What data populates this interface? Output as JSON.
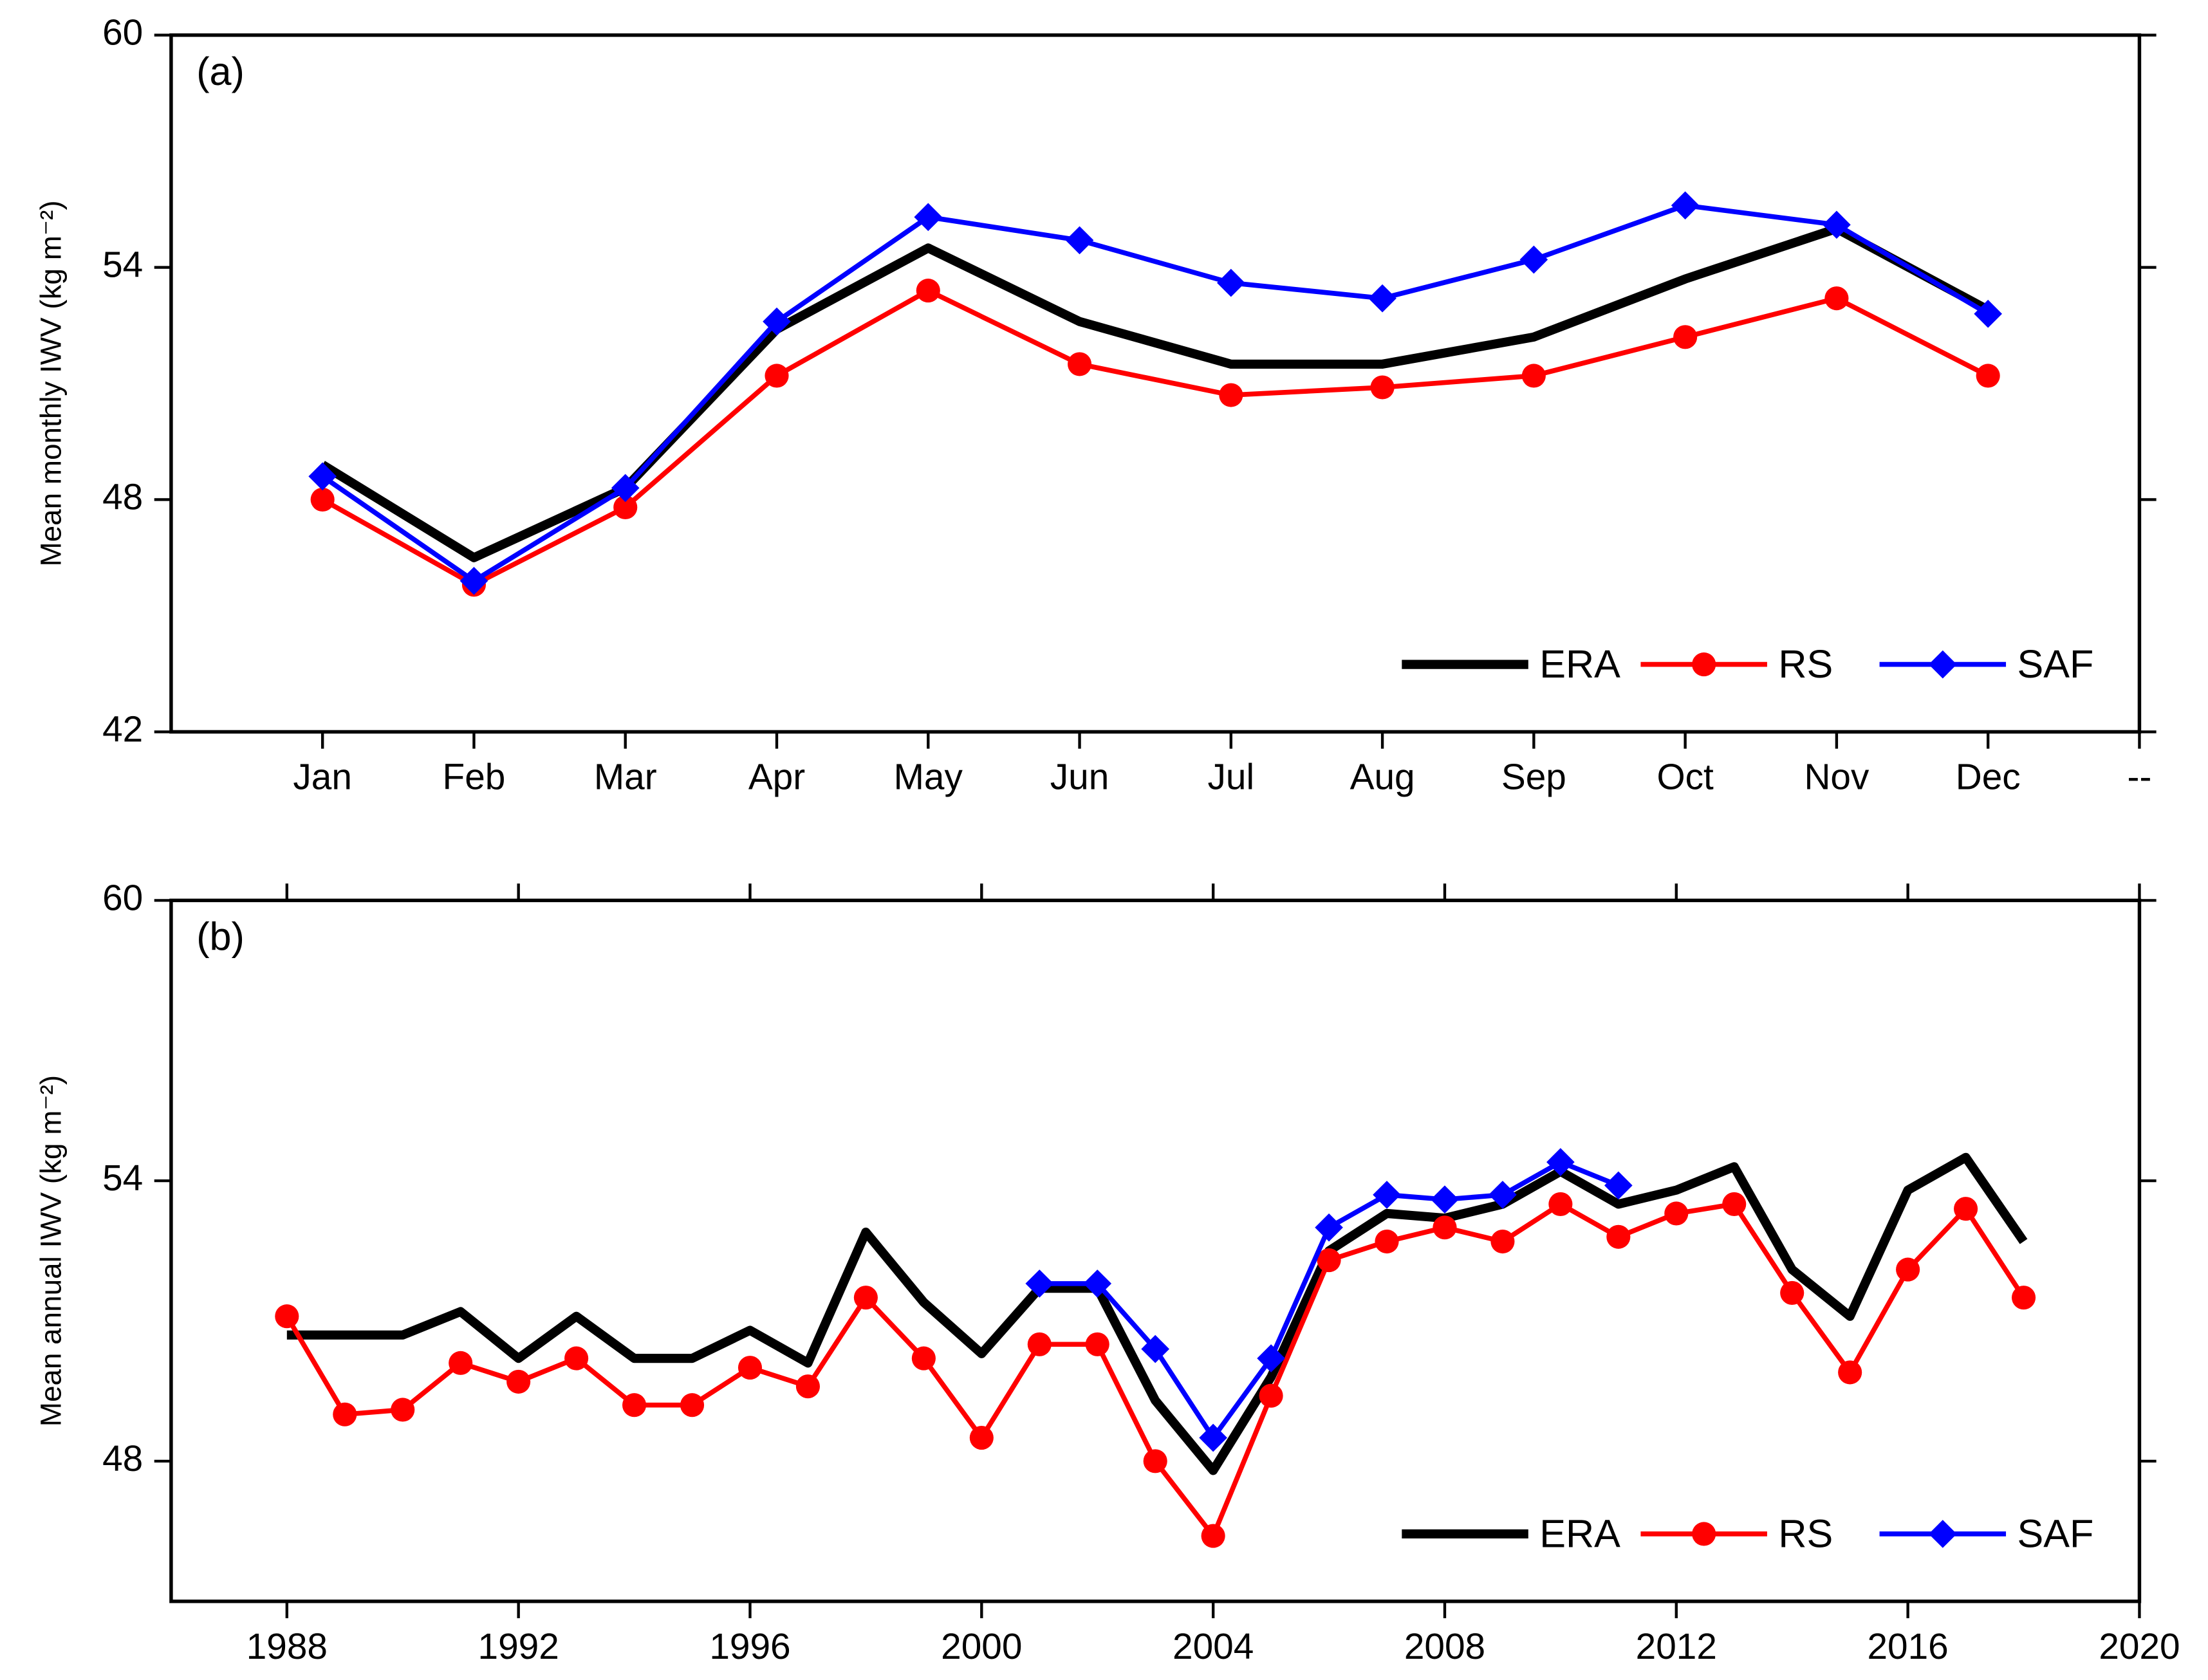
{
  "chart_data": [
    {
      "type": "line",
      "title": "(a)",
      "y_label": "Mean monthly IWV (kg m⁻²)",
      "categories": [
        "Jan",
        "Feb",
        "Mar",
        "Apr",
        "May",
        "Jun",
        "Jul",
        "Aug",
        "Sep",
        "Oct",
        "Nov",
        "Dec",
        "--"
      ],
      "series": [
        {
          "name": "ERA",
          "color": "#000000",
          "marker": null,
          "values": [
            48.9,
            46.5,
            48.3,
            52.4,
            54.5,
            52.6,
            51.5,
            51.5,
            52.2,
            53.7,
            55.0,
            52.9,
            null
          ]
        },
        {
          "name": "RS",
          "color": "#ff0000",
          "marker": "circle",
          "values": [
            48.0,
            45.8,
            47.8,
            51.2,
            53.4,
            51.5,
            50.7,
            50.9,
            51.2,
            52.2,
            53.2,
            51.2,
            null
          ]
        },
        {
          "name": "SAF",
          "color": "#0000ff",
          "marker": "diamond",
          "values": [
            48.6,
            45.9,
            48.3,
            52.6,
            55.3,
            54.7,
            53.6,
            53.2,
            54.2,
            55.6,
            55.1,
            52.8,
            null
          ]
        }
      ],
      "ylim": [
        42,
        60
      ],
      "yticks": [
        42,
        48,
        54,
        60
      ],
      "legend": "lower right"
    },
    {
      "type": "line",
      "title": "(b)",
      "y_label": "Mean annual IWV (kg m⁻²)",
      "x": [
        1988,
        1989,
        1990,
        1991,
        1992,
        1993,
        1994,
        1995,
        1996,
        1997,
        1998,
        1999,
        2000,
        2001,
        2002,
        2003,
        2004,
        2005,
        2006,
        2007,
        2008,
        2009,
        2010,
        2011,
        2012,
        2013,
        2014,
        2015,
        2016,
        2017,
        2018
      ],
      "series": [
        {
          "name": "ERA",
          "color": "#000000",
          "marker": null,
          "values": [
            50.7,
            50.7,
            50.7,
            51.2,
            50.2,
            51.1,
            50.2,
            50.2,
            50.8,
            50.1,
            52.9,
            51.4,
            50.3,
            51.7,
            51.7,
            49.3,
            47.8,
            49.8,
            52.5,
            53.3,
            53.2,
            53.5,
            54.2,
            53.5,
            53.8,
            54.3,
            52.1,
            51.1,
            53.8,
            54.5,
            52.7
          ]
        },
        {
          "name": "RS",
          "color": "#ff0000",
          "marker": "circle",
          "values": [
            51.1,
            49.0,
            49.1,
            50.1,
            49.7,
            50.2,
            49.2,
            49.2,
            50.0,
            49.6,
            51.5,
            50.2,
            48.5,
            50.5,
            50.5,
            48.0,
            46.4,
            49.4,
            52.3,
            52.7,
            53.0,
            52.7,
            53.5,
            52.8,
            53.3,
            53.5,
            51.6,
            49.9,
            52.1,
            53.4,
            51.5
          ]
        },
        {
          "name": "SAF",
          "color": "#0000ff",
          "marker": "diamond",
          "values": [
            null,
            null,
            null,
            null,
            null,
            null,
            null,
            null,
            null,
            null,
            null,
            null,
            null,
            51.8,
            51.8,
            50.4,
            48.5,
            50.2,
            53.0,
            53.7,
            53.6,
            53.7,
            54.4,
            53.9,
            null,
            null,
            null,
            null,
            null,
            null,
            null
          ]
        }
      ],
      "xlim": [
        1986,
        2020
      ],
      "xticks": [
        1988,
        1992,
        1996,
        2000,
        2004,
        2008,
        2012,
        2016,
        2020
      ],
      "ylim": [
        45,
        60
      ],
      "yticks": [
        48,
        54,
        60
      ],
      "legend": "lower right"
    }
  ]
}
